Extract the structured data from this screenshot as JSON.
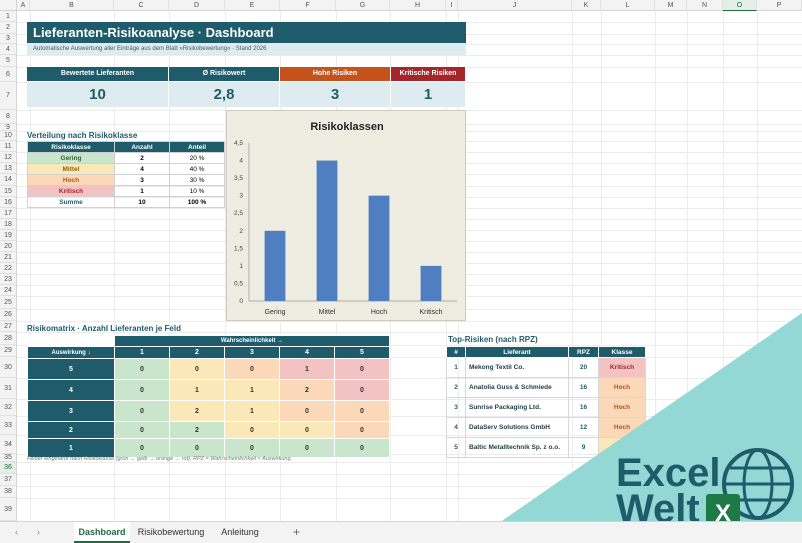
{
  "columns": [
    "A",
    "B",
    "C",
    "D",
    "E",
    "F",
    "G",
    "H",
    "I",
    "J",
    "K",
    "L",
    "M",
    "N",
    "O",
    "P"
  ],
  "selected_column": "O",
  "rows": [
    "1",
    "2",
    "3",
    "4",
    "5",
    "6",
    "7",
    "8",
    "9",
    "10",
    "11",
    "12",
    "13",
    "14",
    "15",
    "16",
    "17",
    "18",
    "19",
    "20",
    "21",
    "22",
    "23",
    "24",
    "25",
    "26",
    "27",
    "28",
    "29",
    "30",
    "31",
    "32",
    "33",
    "34",
    "35",
    "36",
    "37",
    "38",
    "39"
  ],
  "selected_row": "36",
  "title": "Lieferanten-Risikoanalyse  ·  Dashboard",
  "subtitle": "Automatische Auswertung aller Einträge aus dem Blatt »Risikobewertung«  ·  Stand 2026",
  "kpis": [
    {
      "label": "Bewertete Lieferanten",
      "value": "10",
      "color": "#1f5c6b"
    },
    {
      "label": "Ø Risikowert",
      "value": "2,8",
      "color": "#1f5c6b"
    },
    {
      "label": "Hohe Risiken",
      "value": "3",
      "color": "#c4521a"
    },
    {
      "label": "Kritische Risiken",
      "value": "1",
      "color": "#a3262a"
    }
  ],
  "distribution": {
    "title": "Verteilung nach Risikoklasse",
    "headers": [
      "Risikoklasse",
      "Anzahl",
      "Anteil"
    ],
    "rows": [
      {
        "klasse": "Gering",
        "anzahl": "2",
        "anteil": "20 %",
        "bg": "#c9e6cc",
        "fg": "#2f6a36"
      },
      {
        "klasse": "Mittel",
        "anzahl": "4",
        "anteil": "40 %",
        "bg": "#fbe8b8",
        "fg": "#8a6312"
      },
      {
        "klasse": "Hoch",
        "anzahl": "3",
        "anteil": "30 %",
        "bg": "#fbd8b8",
        "fg": "#b4541c"
      },
      {
        "klasse": "Kritisch",
        "anzahl": "1",
        "anteil": "10 %",
        "bg": "#f3c2c2",
        "fg": "#a3262a"
      }
    ],
    "sum": {
      "label": "Summe",
      "anzahl": "10",
      "anteil": "100 %"
    }
  },
  "chart_data": {
    "type": "bar",
    "title": "Risikoklassen",
    "categories": [
      "Gering",
      "Mittel",
      "Hoch",
      "Kritisch"
    ],
    "values": [
      2,
      4,
      3,
      1
    ],
    "ylim": [
      0,
      4.5
    ],
    "yticks": [
      "0",
      "0,5",
      "1",
      "1,5",
      "2",
      "2,5",
      "3",
      "3,5",
      "4",
      "4,5"
    ],
    "bar_color": "#4f7fc0",
    "grid": false
  },
  "matrix": {
    "title": "Risikomatrix  ·  Anzahl Lieferanten je Feld",
    "prob_label": "Wahrscheinlichkeit →",
    "impact_label": "Auswirkung ↓",
    "cols": [
      "1",
      "2",
      "3",
      "4",
      "5"
    ],
    "rows": [
      {
        "impact": "5",
        "cells": [
          "0",
          "0",
          "0",
          "1",
          "0"
        ],
        "colors": [
          "#c9e6cc",
          "#fbe8b8",
          "#fbd8b8",
          "#f3c2c2",
          "#f3c2c2"
        ]
      },
      {
        "impact": "4",
        "cells": [
          "0",
          "1",
          "1",
          "2",
          "0"
        ],
        "colors": [
          "#c9e6cc",
          "#fbe8b8",
          "#fbe8b8",
          "#fbd8b8",
          "#f3c2c2"
        ]
      },
      {
        "impact": "3",
        "cells": [
          "0",
          "2",
          "1",
          "0",
          "0"
        ],
        "colors": [
          "#c9e6cc",
          "#fbe8b8",
          "#fbe8b8",
          "#fbd8b8",
          "#fbd8b8"
        ]
      },
      {
        "impact": "2",
        "cells": [
          "0",
          "2",
          "0",
          "0",
          "0"
        ],
        "colors": [
          "#c9e6cc",
          "#c9e6cc",
          "#fbe8b8",
          "#fbe8b8",
          "#fbd8b8"
        ]
      },
      {
        "impact": "1",
        "cells": [
          "0",
          "0",
          "0",
          "0",
          "0"
        ],
        "colors": [
          "#c9e6cc",
          "#c9e6cc",
          "#c9e6cc",
          "#c9e6cc",
          "#c9e6cc"
        ]
      }
    ],
    "note": "Felder eingefärbt nach Risikoklasse (grün → gelb → orange → rot). RPZ = Wahrscheinlichkeit × Auswirkung."
  },
  "top_risks": {
    "title": "Top-Risiken (nach RPZ)",
    "headers": [
      "#",
      "Lieferant",
      "RPZ",
      "Klasse"
    ],
    "rows": [
      {
        "nr": "1",
        "name": "Mekong Textil Co.",
        "rpz": "20",
        "klasse": "Kritisch",
        "bg": "#f3c2c2",
        "fg": "#a3262a"
      },
      {
        "nr": "2",
        "name": "Anatolia Guss & Schmiede",
        "rpz": "16",
        "klasse": "Hoch",
        "bg": "#fbd8b8",
        "fg": "#b4541c"
      },
      {
        "nr": "3",
        "name": "Sunrise Packaging Ltd.",
        "rpz": "16",
        "klasse": "Hoch",
        "bg": "#fbd8b8",
        "fg": "#b4541c"
      },
      {
        "nr": "4",
        "name": "DataServ Solutions GmbH",
        "rpz": "12",
        "klasse": "Hoch",
        "bg": "#fbd8b8",
        "fg": "#b4541c"
      },
      {
        "nr": "5",
        "name": "Baltic Metalltechnik Sp. z o.o.",
        "rpz": "9",
        "klasse": "Mittel",
        "bg": "#fbe8b8",
        "fg": "#8a6312"
      }
    ]
  },
  "sheet_tabs": [
    {
      "label": "Dashboard",
      "active": true
    },
    {
      "label": "Risikobewertung",
      "active": false
    },
    {
      "label": "Anleitung",
      "active": false
    }
  ],
  "nav": {
    "prev": "‹",
    "next": "›",
    "add": "+"
  },
  "logo": {
    "line1": "Excel",
    "line2": "Welt",
    "badge": "X"
  }
}
